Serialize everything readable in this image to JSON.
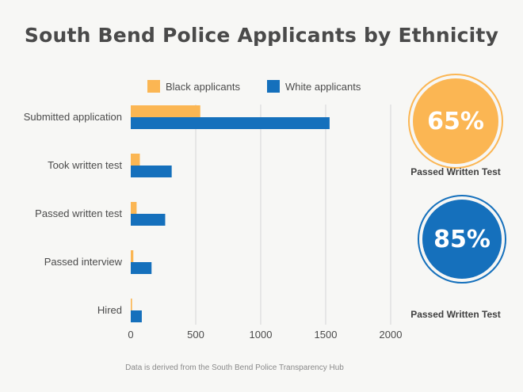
{
  "title": "South Bend Police Applicants by Ethnicity",
  "chart_data": {
    "type": "bar",
    "orientation": "horizontal",
    "categories": [
      "Submitted application",
      "Took written test",
      "Passed written test",
      "Passed interview",
      "Hired"
    ],
    "series": [
      {
        "name": "Black applicants",
        "color": "#fbb653",
        "values": [
          535,
          70,
          45,
          20,
          10
        ]
      },
      {
        "name": "White applicants",
        "color": "#1570bc",
        "values": [
          1530,
          315,
          265,
          160,
          85
        ]
      }
    ],
    "xlim": [
      0,
      2000
    ],
    "xticks": [
      0,
      500,
      1000,
      1500,
      2000
    ],
    "legend_position": "top",
    "grid": "vertical"
  },
  "kpis": [
    {
      "value": "65%",
      "label": "Passed Written Test",
      "color": "#fbb653"
    },
    {
      "value": "85%",
      "label": "Passed Written Test",
      "color": "#1570bc"
    }
  ],
  "footnote": "Data is derived from the South Bend Police Transparency Hub"
}
